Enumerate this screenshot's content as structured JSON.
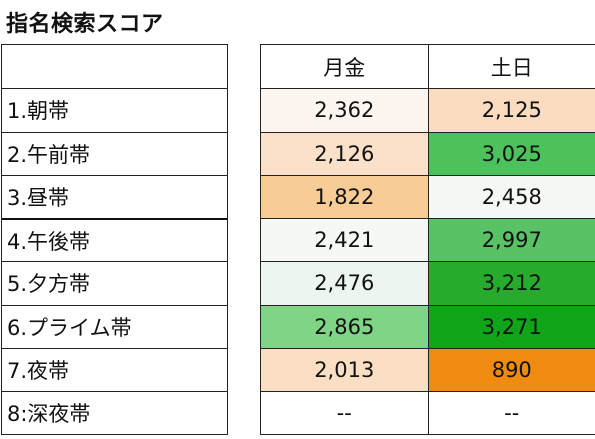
{
  "title": "指名検索スコア",
  "columns": [
    "月金",
    "土日"
  ],
  "rows": [
    {
      "label": "1.朝帯",
      "values": [
        "2,362",
        "2,125"
      ],
      "colors": [
        "#fdf6f0",
        "#fbdcc0"
      ]
    },
    {
      "label": "2.午前帯",
      "values": [
        "2,126",
        "3,025"
      ],
      "colors": [
        "#fbe1ca",
        "#4cc15c"
      ]
    },
    {
      "label": "3.昼帯",
      "values": [
        "1,822",
        "2,458"
      ],
      "colors": [
        "#f7cc95",
        "#f6f8f6"
      ]
    },
    {
      "label": "4.午後帯",
      "values": [
        "2,421",
        "2,997"
      ],
      "colors": [
        "#f6f8f6",
        "#59c265"
      ]
    },
    {
      "label": "5.夕方帯",
      "values": [
        "2,476",
        "3,212"
      ],
      "colors": [
        "#edf6ee",
        "#26ab2c"
      ]
    },
    {
      "label": "6.プライム帯",
      "values": [
        "2,865",
        "3,271"
      ],
      "colors": [
        "#7fd485",
        "#10a518"
      ]
    },
    {
      "label": "7.夜帯",
      "values": [
        "2,013",
        "890"
      ],
      "colors": [
        "#fbdfc4",
        "#ef8c10"
      ]
    },
    {
      "label": "8:深夜帯",
      "values": [
        "--",
        "--"
      ],
      "colors": [
        "#ffffff",
        "#ffffff"
      ]
    }
  ]
}
